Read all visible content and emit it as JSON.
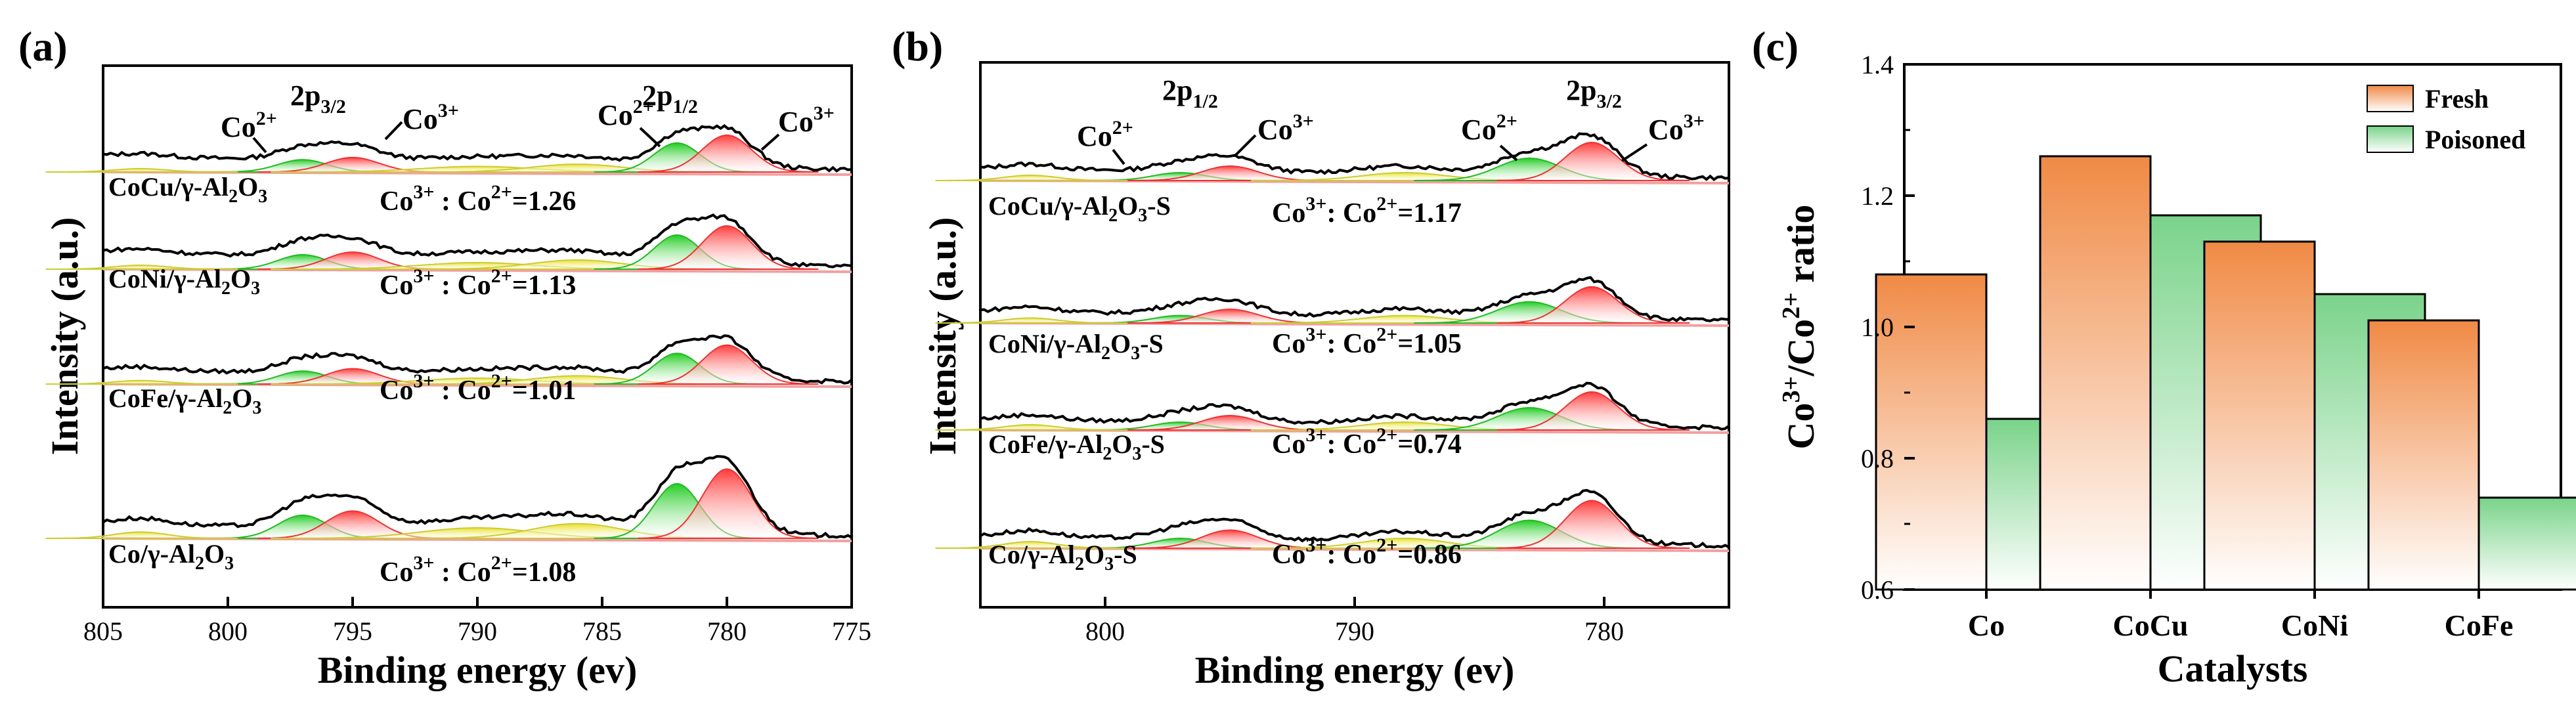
{
  "panels": {
    "a": {
      "label": "(a)",
      "xlabel": "Binding energy (ev)",
      "ylabel": "Intensity (a.u.)",
      "xticks": [
        "805",
        "800",
        "795",
        "790",
        "785",
        "780",
        "775"
      ],
      "peak_labels": {
        "p32": "2p",
        "p32_sub": "3/2",
        "p12": "2p",
        "p12_sub": "1/2"
      },
      "species": {
        "co": "Co",
        "co2": "2+",
        "co3": "3+"
      },
      "samples": [
        {
          "name": "CoCu/γ-Al",
          "sub": "2",
          "tail": "O",
          "sub2": "3",
          "ratio_pre": "Co",
          "ratio_sup1": "3+",
          "ratio_mid": " : Co",
          "ratio_sup2": "2+",
          "ratio_val": "=1.26"
        },
        {
          "name": "CoNi/γ-Al",
          "sub": "2",
          "tail": "O",
          "sub2": "3",
          "ratio_pre": "Co",
          "ratio_sup1": "3+",
          "ratio_mid": " : Co",
          "ratio_sup2": "2+",
          "ratio_val": "=1.13"
        },
        {
          "name": "CoFe/γ-Al",
          "sub": "2",
          "tail": "O",
          "sub2": "3",
          "ratio_pre": "Co",
          "ratio_sup1": "3+",
          "ratio_mid": " : Co",
          "ratio_sup2": "2+",
          "ratio_val": "=1.01"
        },
        {
          "name": "Co/γ-Al",
          "sub": "2",
          "tail": "O",
          "sub2": "3",
          "ratio_pre": "Co",
          "ratio_sup1": "3+",
          "ratio_mid": " : Co",
          "ratio_sup2": "2+",
          "ratio_val": "=1.08"
        }
      ]
    },
    "b": {
      "label": "(b)",
      "xlabel": "Binding energy (ev)",
      "ylabel": "Intensity (a.u.)",
      "xticks": [
        "800",
        "790",
        "780"
      ],
      "peak_labels": {
        "p12": "2p",
        "p12_sub": "1/2",
        "p32": "2p",
        "p32_sub": "3/2"
      },
      "species": {
        "co": "Co",
        "co2": "2+",
        "co3": "3+"
      },
      "samples": [
        {
          "name": "CoCu/γ-Al",
          "sub": "2",
          "tail": "O",
          "sub2": "3",
          "suffix": "-S",
          "ratio_pre": "Co",
          "ratio_sup1": "3+",
          "ratio_mid": ": Co",
          "ratio_sup2": "2+",
          "ratio_val": "=1.17"
        },
        {
          "name": "CoNi/γ-Al",
          "sub": "2",
          "tail": "O",
          "sub2": "3",
          "suffix": "-S",
          "ratio_pre": "Co",
          "ratio_sup1": "3+",
          "ratio_mid": ": Co",
          "ratio_sup2": "2+",
          "ratio_val": "=1.05"
        },
        {
          "name": "CoFe/γ-Al",
          "sub": "2",
          "tail": "O",
          "sub2": "3",
          "suffix": "-S",
          "ratio_pre": "Co",
          "ratio_sup1": "3+",
          "ratio_mid": ": Co",
          "ratio_sup2": "2+",
          "ratio_val": "=0.74"
        },
        {
          "name": "Co/γ-Al",
          "sub": "2",
          "tail": "O",
          "sub2": "3",
          "suffix": "-S",
          "ratio_pre": "Co",
          "ratio_sup1": "3+",
          "ratio_mid": ": Co",
          "ratio_sup2": "2+",
          "ratio_val": "=0.86"
        }
      ]
    },
    "c": {
      "label": "(c)",
      "ylabel_pre": "Co",
      "ylabel_sup1": "3+",
      "ylabel_mid": "/Co",
      "ylabel_sup2": "2+",
      "ylabel_post": " ratio"
    }
  },
  "colors": {
    "fresh": "#f4a26b",
    "poisoned": "#8fd99a",
    "co2_fill": "#33cc33",
    "co3_fill": "#ff5555",
    "sat_fill": "#e6e633"
  },
  "chart_data": [
    {
      "type": "line",
      "title": "(a)",
      "xlabel": "Binding energy (ev)",
      "ylabel": "Intensity (a.u.)",
      "xlim": [
        805,
        775
      ],
      "series": [
        {
          "name": "CoCu/γ-Al2O3",
          "ratio_co3_co2": 1.26,
          "peaks": {
            "Co2+ 2p3/2": 797.0,
            "Co3+ 2p3/2": 795.0,
            "Co2+ 2p1/2": 782.0,
            "Co3+ 2p1/2": 780.0
          }
        },
        {
          "name": "CoNi/γ-Al2O3",
          "ratio_co3_co2": 1.13,
          "peaks": {
            "Co2+ 2p3/2": 797.0,
            "Co3+ 2p3/2": 795.0,
            "Co2+ 2p1/2": 782.0,
            "Co3+ 2p1/2": 780.0
          }
        },
        {
          "name": "CoFe/γ-Al2O3",
          "ratio_co3_co2": 1.01,
          "peaks": {
            "Co2+ 2p3/2": 797.0,
            "Co3+ 2p3/2": 795.0,
            "Co2+ 2p1/2": 782.0,
            "Co3+ 2p1/2": 780.0
          }
        },
        {
          "name": "Co/γ-Al2O3",
          "ratio_co3_co2": 1.08,
          "peaks": {
            "Co2+ 2p3/2": 797.0,
            "Co3+ 2p3/2": 795.0,
            "Co2+ 2p1/2": 782.0,
            "Co3+ 2p1/2": 780.0
          }
        }
      ]
    },
    {
      "type": "line",
      "title": "(b)",
      "xlabel": "Binding energy (ev)",
      "ylabel": "Intensity (a.u.)",
      "xlim": [
        805,
        775
      ],
      "series": [
        {
          "name": "CoCu/γ-Al2O3-S",
          "ratio_co3_co2": 1.17,
          "peaks": {
            "Co2+ 2p1/2": 797.0,
            "Co3+ 2p1/2": 795.0,
            "Co2+ 2p3/2": 783.0,
            "Co3+ 2p3/2": 780.5
          }
        },
        {
          "name": "CoNi/γ-Al2O3-S",
          "ratio_co3_co2": 1.05,
          "peaks": {
            "Co2+ 2p1/2": 797.0,
            "Co3+ 2p1/2": 795.0,
            "Co2+ 2p3/2": 783.0,
            "Co3+ 2p3/2": 780.5
          }
        },
        {
          "name": "CoFe/γ-Al2O3-S",
          "ratio_co3_co2": 0.74,
          "peaks": {
            "Co2+ 2p1/2": 797.0,
            "Co3+ 2p1/2": 795.0,
            "Co2+ 2p3/2": 783.0,
            "Co3+ 2p3/2": 780.5
          }
        },
        {
          "name": "Co/γ-Al2O3-S",
          "ratio_co3_co2": 0.86,
          "peaks": {
            "Co2+ 2p1/2": 797.0,
            "Co3+ 2p1/2": 795.0,
            "Co2+ 2p3/2": 783.0,
            "Co3+ 2p3/2": 780.5
          }
        }
      ]
    },
    {
      "type": "bar",
      "title": "(c)",
      "xlabel": "Catalysts",
      "ylabel": "Co3+/Co2+ ratio",
      "categories": [
        "Co",
        "CoCu",
        "CoNi",
        "CoFe"
      ],
      "series": [
        {
          "name": "Fresh",
          "values": [
            1.08,
            1.26,
            1.13,
            1.01
          ]
        },
        {
          "name": "Poisoned",
          "values": [
            0.86,
            1.17,
            1.05,
            0.74
          ]
        }
      ],
      "ylim": [
        0.6,
        1.4
      ],
      "yticks": [
        "0.6",
        "0.8",
        "1.0",
        "1.2",
        "1.4"
      ],
      "legend": "top-right"
    }
  ]
}
